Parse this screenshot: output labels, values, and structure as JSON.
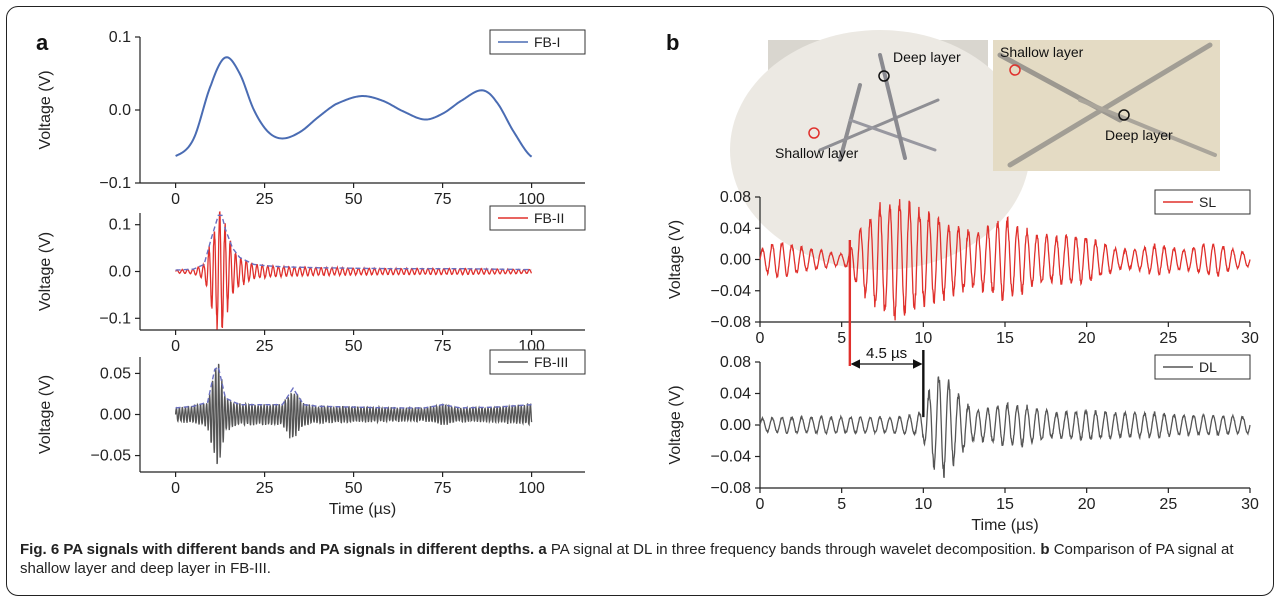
{
  "panel_labels": {
    "a": "a",
    "b": "b"
  },
  "photos": {
    "left": {
      "deep_label": "Deep layer",
      "shallow_label": "Shallow layer"
    },
    "right": {
      "shallow_label": "Shallow layer",
      "deep_label": "Deep layer"
    }
  },
  "colors": {
    "blue": "#4a6cb3",
    "red": "#e0302c",
    "gray": "#555555",
    "dash": "#6a6fc0"
  },
  "chart_data": [
    {
      "id": "a1",
      "type": "line",
      "ylabel": "Voltage (V)",
      "xlabel": "",
      "xlim": [
        -10,
        115
      ],
      "ylim": [
        -0.1,
        0.1
      ],
      "xticks": [
        0,
        25,
        50,
        75,
        100
      ],
      "xtick_labels": [
        "0",
        "25",
        "50",
        "75",
        "100"
      ],
      "yticks": [
        -0.1,
        0.0,
        0.1
      ],
      "ytick_labels": [
        "−0.1",
        "0.0",
        "0.1"
      ],
      "legend": "top-right",
      "series": [
        {
          "name": "FB-I",
          "color": "#4a6cb3",
          "x": [
            0,
            5,
            10,
            14,
            18,
            22,
            26,
            30,
            35,
            40,
            45,
            52,
            58,
            64,
            70,
            75,
            80,
            86,
            90,
            95,
            100
          ],
          "y": [
            -0.063,
            -0.04,
            0.035,
            0.072,
            0.05,
            0.0,
            -0.03,
            -0.039,
            -0.03,
            -0.01,
            0.008,
            0.019,
            0.013,
            -0.002,
            -0.013,
            -0.005,
            0.012,
            0.027,
            0.012,
            -0.03,
            -0.064
          ]
        }
      ]
    },
    {
      "id": "a2",
      "type": "line",
      "ylabel": "Voltage (V)",
      "xlabel": "",
      "xlim": [
        -10,
        115
      ],
      "ylim": [
        -0.125,
        0.125
      ],
      "xticks": [
        0,
        25,
        50,
        75,
        100
      ],
      "xtick_labels": [
        "0",
        "25",
        "50",
        "75",
        "100"
      ],
      "yticks": [
        -0.1,
        0.0,
        0.1
      ],
      "ytick_labels": [
        "−0.1",
        "0.0",
        "0.1"
      ],
      "legend": "top-right",
      "series": [
        {
          "name": "FB-II",
          "color": "#e0302c",
          "style": "oscillation",
          "x": [
            0,
            5,
            8,
            10,
            12,
            13,
            14,
            16,
            18,
            22,
            26,
            30,
            35,
            40,
            50,
            60,
            70,
            80,
            90,
            100
          ],
          "amplitude": [
            0.003,
            0.005,
            0.015,
            0.07,
            0.12,
            0.12,
            0.09,
            0.05,
            0.03,
            0.015,
            0.012,
            0.01,
            0.009,
            0.008,
            0.007,
            0.006,
            0.006,
            0.006,
            0.005,
            0.004
          ],
          "period": 1.5
        },
        {
          "name": "envelope",
          "color": "#6a6fc0",
          "style": "dashed",
          "x": [
            0,
            5,
            8,
            10,
            12,
            13,
            14,
            16,
            18,
            22,
            26,
            30,
            35,
            40,
            50,
            60,
            70,
            80,
            90,
            100
          ],
          "y": [
            0.003,
            0.005,
            0.015,
            0.07,
            0.12,
            0.12,
            0.09,
            0.05,
            0.03,
            0.015,
            0.012,
            0.01,
            0.009,
            0.008,
            0.007,
            0.006,
            0.006,
            0.006,
            0.005,
            0.004
          ]
        }
      ]
    },
    {
      "id": "a3",
      "type": "line",
      "ylabel": "Voltage (V)",
      "xlabel": "Time (µs)",
      "xlim": [
        -10,
        115
      ],
      "ylim": [
        -0.07,
        0.07
      ],
      "xticks": [
        0,
        25,
        50,
        75,
        100
      ],
      "xtick_labels": [
        "0",
        "25",
        "50",
        "75",
        "100"
      ],
      "yticks": [
        -0.05,
        0.0,
        0.05
      ],
      "ytick_labels": [
        "−0.05",
        "0.00",
        "0.05"
      ],
      "legend": "top-right",
      "series": [
        {
          "name": "FB-III",
          "color": "#555555",
          "style": "oscillation",
          "x": [
            0,
            5,
            9,
            11,
            12,
            14,
            18,
            25,
            30,
            33,
            34,
            36,
            40,
            50,
            60,
            70,
            75,
            80,
            90,
            100
          ],
          "amplitude": [
            0.008,
            0.01,
            0.015,
            0.055,
            0.058,
            0.02,
            0.012,
            0.012,
            0.012,
            0.032,
            0.025,
            0.012,
            0.01,
            0.009,
            0.008,
            0.008,
            0.012,
            0.008,
            0.009,
            0.012
          ],
          "period": 0.85
        },
        {
          "name": "envelope",
          "color": "#6a6fc0",
          "style": "dashed",
          "x": [
            0,
            5,
            9,
            11,
            12,
            14,
            18,
            25,
            30,
            33,
            34,
            36,
            40,
            50,
            60,
            70,
            75,
            80,
            90,
            100
          ],
          "y": [
            0.008,
            0.01,
            0.015,
            0.055,
            0.058,
            0.02,
            0.012,
            0.012,
            0.012,
            0.032,
            0.025,
            0.012,
            0.01,
            0.009,
            0.008,
            0.008,
            0.012,
            0.008,
            0.009,
            0.012
          ]
        }
      ]
    },
    {
      "id": "b1",
      "type": "line",
      "ylabel": "Voltage (V)",
      "xlabel": "",
      "xlim": [
        0,
        30
      ],
      "ylim": [
        -0.08,
        0.08
      ],
      "xticks": [
        0,
        5,
        10,
        15,
        20,
        25,
        30
      ],
      "xtick_labels": [
        "0",
        "5",
        "10",
        "15",
        "20",
        "25",
        "30"
      ],
      "yticks": [
        -0.08,
        -0.04,
        0.0,
        0.04,
        0.08
      ],
      "ytick_labels": [
        "−0.08",
        "−0.04",
        "0.00",
        "0.04",
        "0.08"
      ],
      "legend": "top-right",
      "series": [
        {
          "name": "SL",
          "color": "#e0302c",
          "style": "oscillation",
          "x": [
            0,
            1,
            2,
            3,
            4,
            5,
            5.5,
            6,
            7,
            8,
            9,
            10,
            11,
            12,
            13,
            14,
            15,
            16,
            17,
            18,
            19,
            20,
            21,
            22,
            23,
            24,
            25,
            26,
            27,
            28,
            29,
            30
          ],
          "amplitude": [
            0.012,
            0.022,
            0.018,
            0.014,
            0.01,
            0.007,
            0.012,
            0.035,
            0.06,
            0.075,
            0.07,
            0.06,
            0.05,
            0.04,
            0.035,
            0.04,
            0.05,
            0.04,
            0.03,
            0.028,
            0.03,
            0.028,
            0.02,
            0.012,
            0.012,
            0.018,
            0.016,
            0.012,
            0.018,
            0.02,
            0.012,
            0.008
          ],
          "period": 0.6
        }
      ]
    },
    {
      "id": "b2",
      "type": "line",
      "ylabel": "Voltage (V)",
      "xlabel": "Time (µs)",
      "xlim": [
        0,
        30
      ],
      "ylim": [
        -0.08,
        0.08
      ],
      "xticks": [
        0,
        5,
        10,
        15,
        20,
        25,
        30
      ],
      "xtick_labels": [
        "0",
        "5",
        "10",
        "15",
        "20",
        "25",
        "30"
      ],
      "yticks": [
        -0.08,
        -0.04,
        0.0,
        0.04,
        0.08
      ],
      "ytick_labels": [
        "−0.08",
        "−0.04",
        "0.00",
        "0.04",
        "0.08"
      ],
      "legend": "top-right",
      "series": [
        {
          "name": "DL",
          "color": "#555555",
          "style": "oscillation",
          "x": [
            0,
            2,
            4,
            6,
            8,
            9.5,
            10,
            10.5,
            11,
            11.5,
            12,
            13,
            14,
            15,
            16,
            17,
            18,
            20,
            22,
            24,
            26,
            28,
            30
          ],
          "amplitude": [
            0.008,
            0.01,
            0.01,
            0.01,
            0.01,
            0.012,
            0.02,
            0.05,
            0.06,
            0.06,
            0.04,
            0.02,
            0.02,
            0.025,
            0.025,
            0.02,
            0.015,
            0.018,
            0.015,
            0.015,
            0.012,
            0.012,
            0.01
          ],
          "period": 0.6
        }
      ]
    }
  ],
  "annotation": {
    "delay_label": "4.5 µs",
    "start_time": 5.5,
    "end_time": 10
  },
  "caption": {
    "fig_bold": "Fig. 6 PA signals with different bands and PA signals in different depths.",
    "a_label": "a",
    "a_text": "PA signal at DL in three frequency bands through wavelet decomposition.",
    "b_label": "b",
    "b_text": "Comparison of PA signal at shallow layer and deep layer in FB-III."
  }
}
